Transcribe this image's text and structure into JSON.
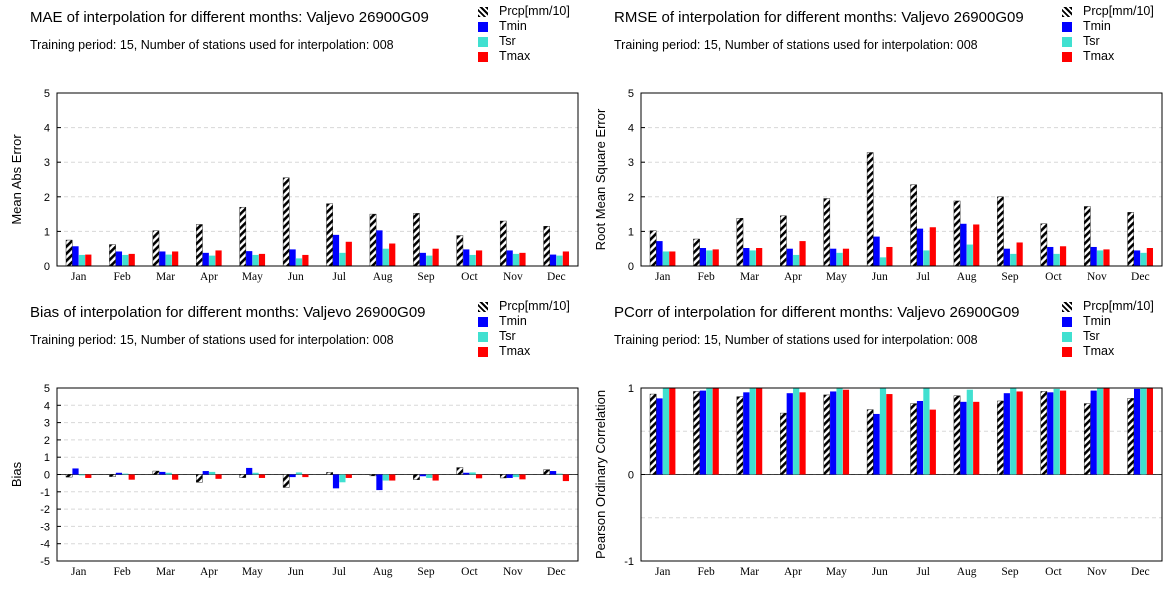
{
  "colors": {
    "Prcp[mm/10]": "hatch-black",
    "Tmin": "#0000ff",
    "Tsr": "#40e0d0",
    "Tmax": "#ff0000",
    "grid": "#d8d8d8"
  },
  "legend": [
    "Prcp[mm/10]",
    "Tmin",
    "Tsr",
    "Tmax"
  ],
  "chart_data": [
    {
      "type": "bar",
      "title": "MAE of interpolation for different months: Valjevo  26900G09",
      "subtitle": "Training period: 15, Number of stations used for interpolation: 008",
      "ylabel": "Mean Abs Error",
      "ylim": [
        0,
        5
      ],
      "yticks": [
        "0",
        "1",
        "2",
        "3",
        "4",
        "5"
      ],
      "yticks_values": [
        0,
        1,
        2,
        3,
        4,
        5
      ],
      "grid": true,
      "legend_position": "top-right",
      "categories": [
        "Jan",
        "Feb",
        "Mar",
        "Apr",
        "May",
        "Jun",
        "Jul",
        "Aug",
        "Sep",
        "Oct",
        "Nov",
        "Dec"
      ],
      "series": [
        {
          "name": "Prcp[mm/10]",
          "values": [
            0.75,
            0.62,
            1.02,
            1.2,
            1.7,
            2.55,
            1.8,
            1.5,
            1.52,
            0.88,
            1.3,
            1.15
          ]
        },
        {
          "name": "Tmin",
          "values": [
            0.57,
            0.42,
            0.42,
            0.38,
            0.43,
            0.48,
            0.9,
            1.03,
            0.38,
            0.48,
            0.45,
            0.33
          ]
        },
        {
          "name": "Tsr",
          "values": [
            0.32,
            0.32,
            0.33,
            0.3,
            0.32,
            0.22,
            0.38,
            0.5,
            0.3,
            0.32,
            0.35,
            0.3
          ]
        },
        {
          "name": "Tmax",
          "values": [
            0.33,
            0.35,
            0.42,
            0.45,
            0.35,
            0.32,
            0.7,
            0.65,
            0.5,
            0.45,
            0.38,
            0.42
          ]
        }
      ]
    },
    {
      "type": "bar",
      "title": "RMSE of interpolation for different months: Valjevo  26900G09",
      "subtitle": "Training period: 15, Number of stations used for interpolation: 008",
      "ylabel": "Root Mean Square Error",
      "ylim": [
        0,
        5
      ],
      "yticks": [
        "0",
        "1",
        "2",
        "3",
        "4",
        "5"
      ],
      "yticks_values": [
        0,
        1,
        2,
        3,
        4,
        5
      ],
      "grid": true,
      "legend_position": "top-right",
      "categories": [
        "Jan",
        "Feb",
        "Mar",
        "Apr",
        "May",
        "Jun",
        "Jul",
        "Aug",
        "Sep",
        "Oct",
        "Nov",
        "Dec"
      ],
      "series": [
        {
          "name": "Prcp[mm/10]",
          "values": [
            1.02,
            0.78,
            1.38,
            1.45,
            1.95,
            3.28,
            2.35,
            1.88,
            2.0,
            1.22,
            1.72,
            1.55
          ]
        },
        {
          "name": "Tmin",
          "values": [
            0.72,
            0.52,
            0.52,
            0.5,
            0.5,
            0.85,
            1.08,
            1.22,
            0.5,
            0.55,
            0.55,
            0.45
          ]
        },
        {
          "name": "Tsr",
          "values": [
            0.42,
            0.45,
            0.45,
            0.32,
            0.38,
            0.25,
            0.45,
            0.62,
            0.35,
            0.35,
            0.45,
            0.38
          ]
        },
        {
          "name": "Tmax",
          "values": [
            0.42,
            0.48,
            0.52,
            0.72,
            0.5,
            0.55,
            1.12,
            1.2,
            0.68,
            0.57,
            0.48,
            0.52
          ]
        }
      ]
    },
    {
      "type": "bar",
      "title": "Bias of interpolation for different months: Valjevo  26900G09",
      "subtitle": "Training period: 15, Number of stations used for interpolation: 008",
      "ylabel": "Bias",
      "ylim": [
        -5,
        5
      ],
      "yticks": [
        "-5",
        "-4",
        "-3",
        "-2",
        "-1",
        "0",
        "1",
        "2",
        "3",
        "4",
        "5"
      ],
      "yticks_values": [
        -5,
        -4,
        -3,
        -2,
        -1,
        0,
        1,
        2,
        3,
        4,
        5
      ],
      "grid": true,
      "legend_position": "top-right",
      "categories": [
        "Jan",
        "Feb",
        "Mar",
        "Apr",
        "May",
        "Jun",
        "Jul",
        "Aug",
        "Sep",
        "Oct",
        "Nov",
        "Dec"
      ],
      "series": [
        {
          "name": "Prcp[mm/10]",
          "values": [
            -0.15,
            -0.12,
            0.2,
            -0.45,
            -0.18,
            -0.75,
            0.12,
            -0.08,
            -0.3,
            0.4,
            -0.2,
            0.28
          ]
        },
        {
          "name": "Tmin",
          "values": [
            0.35,
            0.1,
            0.15,
            0.2,
            0.38,
            -0.15,
            -0.8,
            -0.9,
            -0.1,
            0.1,
            -0.2,
            0.2
          ]
        },
        {
          "name": "Tsr",
          "values": [
            -0.05,
            0.05,
            0.1,
            0.15,
            0.1,
            0.12,
            -0.45,
            -0.35,
            -0.2,
            0.12,
            -0.15,
            0.05
          ]
        },
        {
          "name": "Tmax",
          "values": [
            -0.2,
            -0.3,
            -0.3,
            -0.25,
            -0.2,
            -0.15,
            -0.2,
            -0.35,
            -0.35,
            -0.22,
            -0.28,
            -0.38
          ]
        }
      ]
    },
    {
      "type": "bar",
      "title": "PCorr of interpolation for different months: Valjevo  26900G09",
      "subtitle": "Training period: 15, Number of stations used for interpolation: 008",
      "ylabel": "Pearson Ordinary Correlation",
      "ylim": [
        -1,
        1
      ],
      "yticks": [
        "-1",
        "0",
        "1"
      ],
      "yticks_values": [
        -1,
        0,
        1
      ],
      "grid": true,
      "legend_position": "top-right",
      "categories": [
        "Jan",
        "Feb",
        "Mar",
        "Apr",
        "May",
        "Jun",
        "Jul",
        "Aug",
        "Sep",
        "Oct",
        "Nov",
        "Dec"
      ],
      "series": [
        {
          "name": "Prcp[mm/10]",
          "values": [
            0.93,
            0.96,
            0.9,
            0.71,
            0.92,
            0.75,
            0.82,
            0.91,
            0.85,
            0.96,
            0.82,
            0.88
          ]
        },
        {
          "name": "Tmin",
          "values": [
            0.88,
            0.97,
            0.95,
            0.94,
            0.96,
            0.7,
            0.85,
            0.84,
            0.94,
            0.95,
            0.97,
            0.99
          ]
        },
        {
          "name": "Tsr",
          "values": [
            1.0,
            1.0,
            1.0,
            1.0,
            1.0,
            1.0,
            1.0,
            0.98,
            1.0,
            0.99,
            1.0,
            1.0
          ]
        },
        {
          "name": "Tmax",
          "values": [
            1.0,
            1.0,
            1.0,
            0.95,
            0.98,
            0.93,
            0.75,
            0.84,
            0.96,
            0.97,
            1.0,
            1.0
          ]
        }
      ]
    }
  ]
}
